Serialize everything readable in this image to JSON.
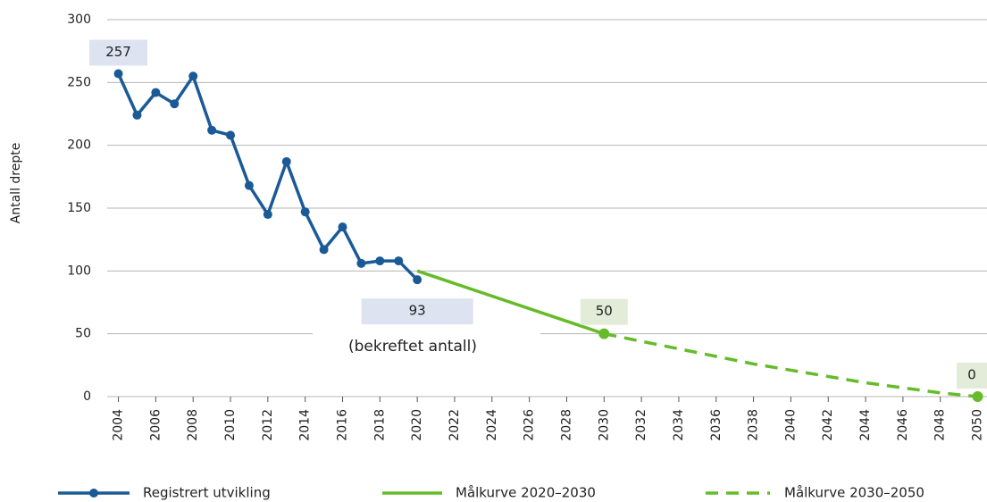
{
  "chart_data": {
    "type": "line",
    "y_label": "Antall drepte",
    "xlim": [
      2003.4,
      2050.5
    ],
    "ylim": [
      0,
      300
    ],
    "xticks": [
      2004,
      2006,
      2008,
      2010,
      2012,
      2014,
      2016,
      2018,
      2020,
      2022,
      2024,
      2026,
      2028,
      2030,
      2032,
      2034,
      2036,
      2038,
      2040,
      2042,
      2044,
      2046,
      2048,
      2050
    ],
    "yticks": [
      0,
      50,
      100,
      150,
      200,
      250,
      300
    ],
    "grid": true,
    "legend": "bottom",
    "series": [
      {
        "name": "Registrert utvikling",
        "color": "#1a5a96",
        "style": "solid",
        "markers": true,
        "x": [
          2004,
          2005,
          2006,
          2007,
          2008,
          2009,
          2010,
          2011,
          2012,
          2013,
          2014,
          2015,
          2016,
          2017,
          2018,
          2019,
          2020
        ],
        "values": [
          257,
          224,
          242,
          233,
          255,
          212,
          208,
          168,
          145,
          187,
          147,
          117,
          135,
          106,
          108,
          108,
          93
        ]
      },
      {
        "name": "Målkurve 2020–2030",
        "color": "#66bb2a",
        "style": "solid",
        "markers": false,
        "x": [
          2020,
          2030
        ],
        "values": [
          100,
          50
        ]
      },
      {
        "name": "Målkurve 2030–2050",
        "color": "#66bb2a",
        "style": "dashed",
        "markers": false,
        "x": [
          2030,
          2032,
          2034,
          2036,
          2038,
          2040,
          2042,
          2044,
          2046,
          2048,
          2050
        ],
        "values": [
          50,
          44,
          38,
          32,
          26,
          21,
          16,
          11,
          7,
          3,
          0
        ]
      }
    ],
    "annotations": [
      {
        "text": "(bekreftet antall)"
      }
    ]
  }
}
